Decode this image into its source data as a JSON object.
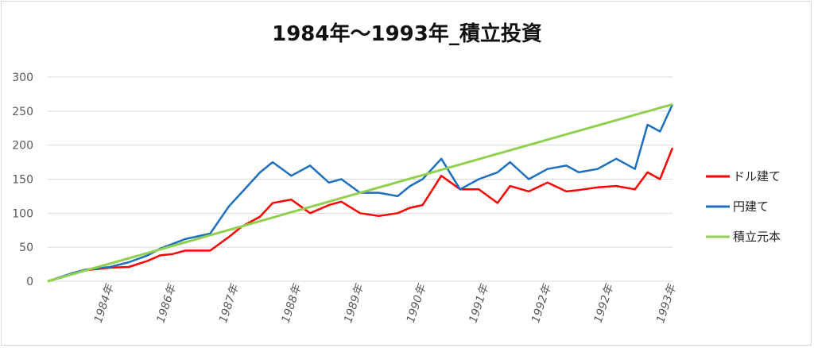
{
  "chart_data": {
    "type": "line",
    "title": "1984年～1993年_積立投資",
    "xlabel": "",
    "ylabel": "",
    "ylim": [
      0,
      300
    ],
    "yticks": [
      0,
      50,
      100,
      150,
      200,
      250,
      300
    ],
    "grid": true,
    "legend_position": "right",
    "x_tick_labels": [
      "1984年",
      "1986年",
      "1987年",
      "1988年",
      "1989年",
      "1990年",
      "1991年",
      "1992年",
      "1992年",
      "1993年"
    ],
    "x_points": [
      0,
      4,
      6,
      10,
      13,
      16,
      18,
      20,
      22,
      26,
      29,
      31,
      34,
      36,
      39,
      42,
      45,
      47,
      50,
      53,
      56,
      58,
      60,
      63,
      66,
      69,
      72,
      74,
      77,
      80,
      83,
      85,
      88,
      91,
      94,
      96,
      98,
      100
    ],
    "series": [
      {
        "name": "ドル建て",
        "color": "#ff0000",
        "values": [
          0,
          11,
          16,
          20,
          21,
          30,
          38,
          40,
          45,
          45,
          65,
          80,
          95,
          115,
          120,
          100,
          112,
          117,
          100,
          96,
          100,
          108,
          112,
          155,
          135,
          135,
          115,
          140,
          132,
          145,
          132,
          134,
          138,
          140,
          135,
          160,
          150,
          196
        ]
      },
      {
        "name": "円建て",
        "color": "#1f6fbf",
        "values": [
          0,
          12,
          17,
          21,
          28,
          38,
          48,
          55,
          62,
          70,
          110,
          130,
          160,
          175,
          155,
          170,
          145,
          150,
          130,
          130,
          125,
          140,
          150,
          180,
          135,
          150,
          160,
          175,
          150,
          165,
          170,
          160,
          165,
          180,
          165,
          230,
          220,
          260
        ]
      },
      {
        "name": "積立元本",
        "color": "#92d050",
        "values": [
          0,
          10.4,
          15.6,
          26,
          33.8,
          41.6,
          46.8,
          52,
          57.2,
          67.6,
          75.4,
          80.6,
          88.4,
          93.6,
          101.4,
          109.2,
          117,
          122.2,
          130,
          137.8,
          145.6,
          150.8,
          156,
          163.8,
          171.6,
          179.4,
          187.2,
          192.4,
          200.2,
          208,
          215.8,
          221,
          228.8,
          236.6,
          244.4,
          249.6,
          254.8,
          260
        ]
      }
    ]
  }
}
